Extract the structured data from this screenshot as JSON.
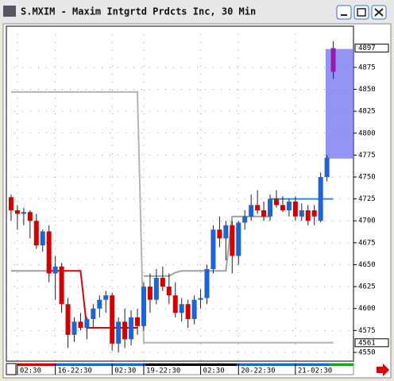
{
  "chart_data": {
    "type": "candlestick",
    "title": "S.MXIM - Maxim Intgrtd Prdcts Inc, 30 Min",
    "open": [
      4727,
      4712,
      4708,
      4710,
      4700,
      4672,
      4688,
      4640,
      4648,
      4605,
      4570,
      4585,
      4578,
      4588,
      4600,
      4610,
      4615,
      4560,
      4585,
      4565,
      4590,
      4580,
      4625,
      4610,
      4635,
      4625,
      4615,
      4595,
      4605,
      4588,
      4610,
      4612,
      4645,
      4690,
      4680,
      4695,
      4660,
      4698,
      4705,
      4718,
      4712,
      4705,
      4725,
      4718,
      4712,
      4722,
      4705,
      4712,
      4712,
      4700,
      4750,
      4897
    ],
    "high": [
      4730,
      4718,
      4715,
      4712,
      4708,
      4690,
      4695,
      4660,
      4652,
      4612,
      4590,
      4595,
      4590,
      4605,
      4615,
      4620,
      4618,
      4590,
      4600,
      4598,
      4600,
      4630,
      4640,
      4645,
      4648,
      4640,
      4630,
      4612,
      4610,
      4615,
      4622,
      4650,
      4695,
      4705,
      4700,
      4700,
      4700,
      4712,
      4730,
      4735,
      4722,
      4730,
      4735,
      4728,
      4725,
      4728,
      4720,
      4718,
      4718,
      4755,
      4775,
      4905
    ],
    "low": [
      4700,
      4690,
      4695,
      4680,
      4668,
      4665,
      4630,
      4610,
      4595,
      4555,
      4562,
      4575,
      4565,
      4578,
      4590,
      4595,
      4552,
      4550,
      4555,
      4558,
      4570,
      4575,
      4595,
      4605,
      4620,
      4605,
      4590,
      4585,
      4578,
      4582,
      4600,
      4605,
      4640,
      4670,
      4655,
      4640,
      4650,
      4690,
      4700,
      4708,
      4700,
      4700,
      4715,
      4710,
      4705,
      4700,
      4700,
      4695,
      4695,
      4698,
      4745,
      4862
    ],
    "close": [
      4712,
      4708,
      4710,
      4700,
      4672,
      4688,
      4640,
      4648,
      4605,
      4570,
      4585,
      4578,
      4588,
      4600,
      4610,
      4615,
      4560,
      4585,
      4565,
      4590,
      4580,
      4625,
      4610,
      4635,
      4625,
      4615,
      4595,
      4605,
      4588,
      4610,
      4612,
      4645,
      4690,
      4680,
      4695,
      4660,
      4698,
      4705,
      4718,
      4712,
      4705,
      4725,
      4718,
      4712,
      4722,
      4705,
      4712,
      4700,
      4705,
      4750,
      4772,
      4870
    ],
    "up_color": "#1e64d2",
    "down_color": "#d40000",
    "last_color": "#9a1ab0",
    "series": [
      {
        "color": "#b4b4b4",
        "values": [
          4847,
          4847,
          4847,
          4847,
          4847,
          4847,
          4847,
          4847,
          4847,
          4847,
          4847,
          4847,
          4847,
          4847,
          4847,
          4847,
          4847,
          4847,
          4847,
          4847,
          4847,
          4561,
          4561,
          4561,
          4561,
          4561,
          4561,
          4561,
          4561,
          4561,
          4561,
          4561,
          4561,
          4561,
          4561,
          4561,
          4561,
          4561,
          4561,
          4561,
          4561,
          4561,
          4561,
          4561,
          4561,
          4561,
          4561,
          4561,
          4561,
          4561,
          4561,
          4561
        ]
      },
      {
        "color": "#a0a0a0",
        "values": [
          4643,
          4643,
          4643,
          4643,
          4643,
          4643,
          4643,
          null,
          null,
          null,
          null,
          null,
          null,
          null,
          null,
          null,
          null,
          null,
          null,
          null,
          null,
          4637,
          4637,
          4637,
          4637,
          4637,
          4641,
          4643,
          4643,
          4643,
          4643,
          4643,
          4643,
          4643,
          4643,
          4705,
          4705,
          4705,
          4705,
          4705,
          4705,
          4705,
          null,
          null,
          null,
          null,
          null,
          null,
          null,
          null,
          null,
          null
        ]
      },
      {
        "color": "#e00000",
        "values": [
          null,
          null,
          null,
          null,
          null,
          null,
          4643,
          4643,
          4643,
          4643,
          4643,
          4643,
          4578,
          4578,
          4578,
          4578,
          4578,
          4578,
          4578,
          4578,
          4578,
          null,
          null,
          null,
          null,
          null,
          null,
          null,
          null,
          null,
          null,
          null,
          null,
          null,
          null,
          null,
          null,
          null,
          null,
          null,
          null,
          null,
          null,
          null,
          null,
          null,
          null,
          null,
          null,
          null,
          null,
          null
        ]
      },
      {
        "color": "#2a8ce0",
        "values": [
          null,
          null,
          null,
          null,
          null,
          null,
          null,
          null,
          null,
          null,
          null,
          null,
          null,
          null,
          null,
          null,
          null,
          null,
          null,
          null,
          null,
          null,
          null,
          null,
          null,
          null,
          null,
          null,
          null,
          null,
          null,
          null,
          null,
          null,
          null,
          null,
          null,
          null,
          null,
          null,
          null,
          4725,
          4725,
          4725,
          4725,
          4725,
          4725,
          4725,
          4725,
          4725,
          4725,
          4725
        ]
      }
    ],
    "zone": [
      4771,
      4896
    ],
    "zone_color": "#7070f0",
    "markers": [
      4897,
      4561
    ],
    "xlim": [
      -0.75,
      54.2
    ],
    "xticks": [
      {
        "value": 1,
        "label": "02:30"
      },
      {
        "value": 7,
        "label": "16-22:30"
      },
      {
        "value": 16,
        "label": "02:30"
      },
      {
        "value": 21,
        "label": "19-22:30"
      },
      {
        "value": 30,
        "label": "02:30"
      },
      {
        "value": 36,
        "label": "20-22:30"
      },
      {
        "value": 45,
        "label": "21-02:30"
      }
    ],
    "ylim": [
      4540,
      4922
    ],
    "yticks": [
      4550,
      4575,
      4600,
      4625,
      4650,
      4675,
      4700,
      4725,
      4750,
      4775,
      4800,
      4825,
      4850,
      4875
    ],
    "grid": true
  }
}
